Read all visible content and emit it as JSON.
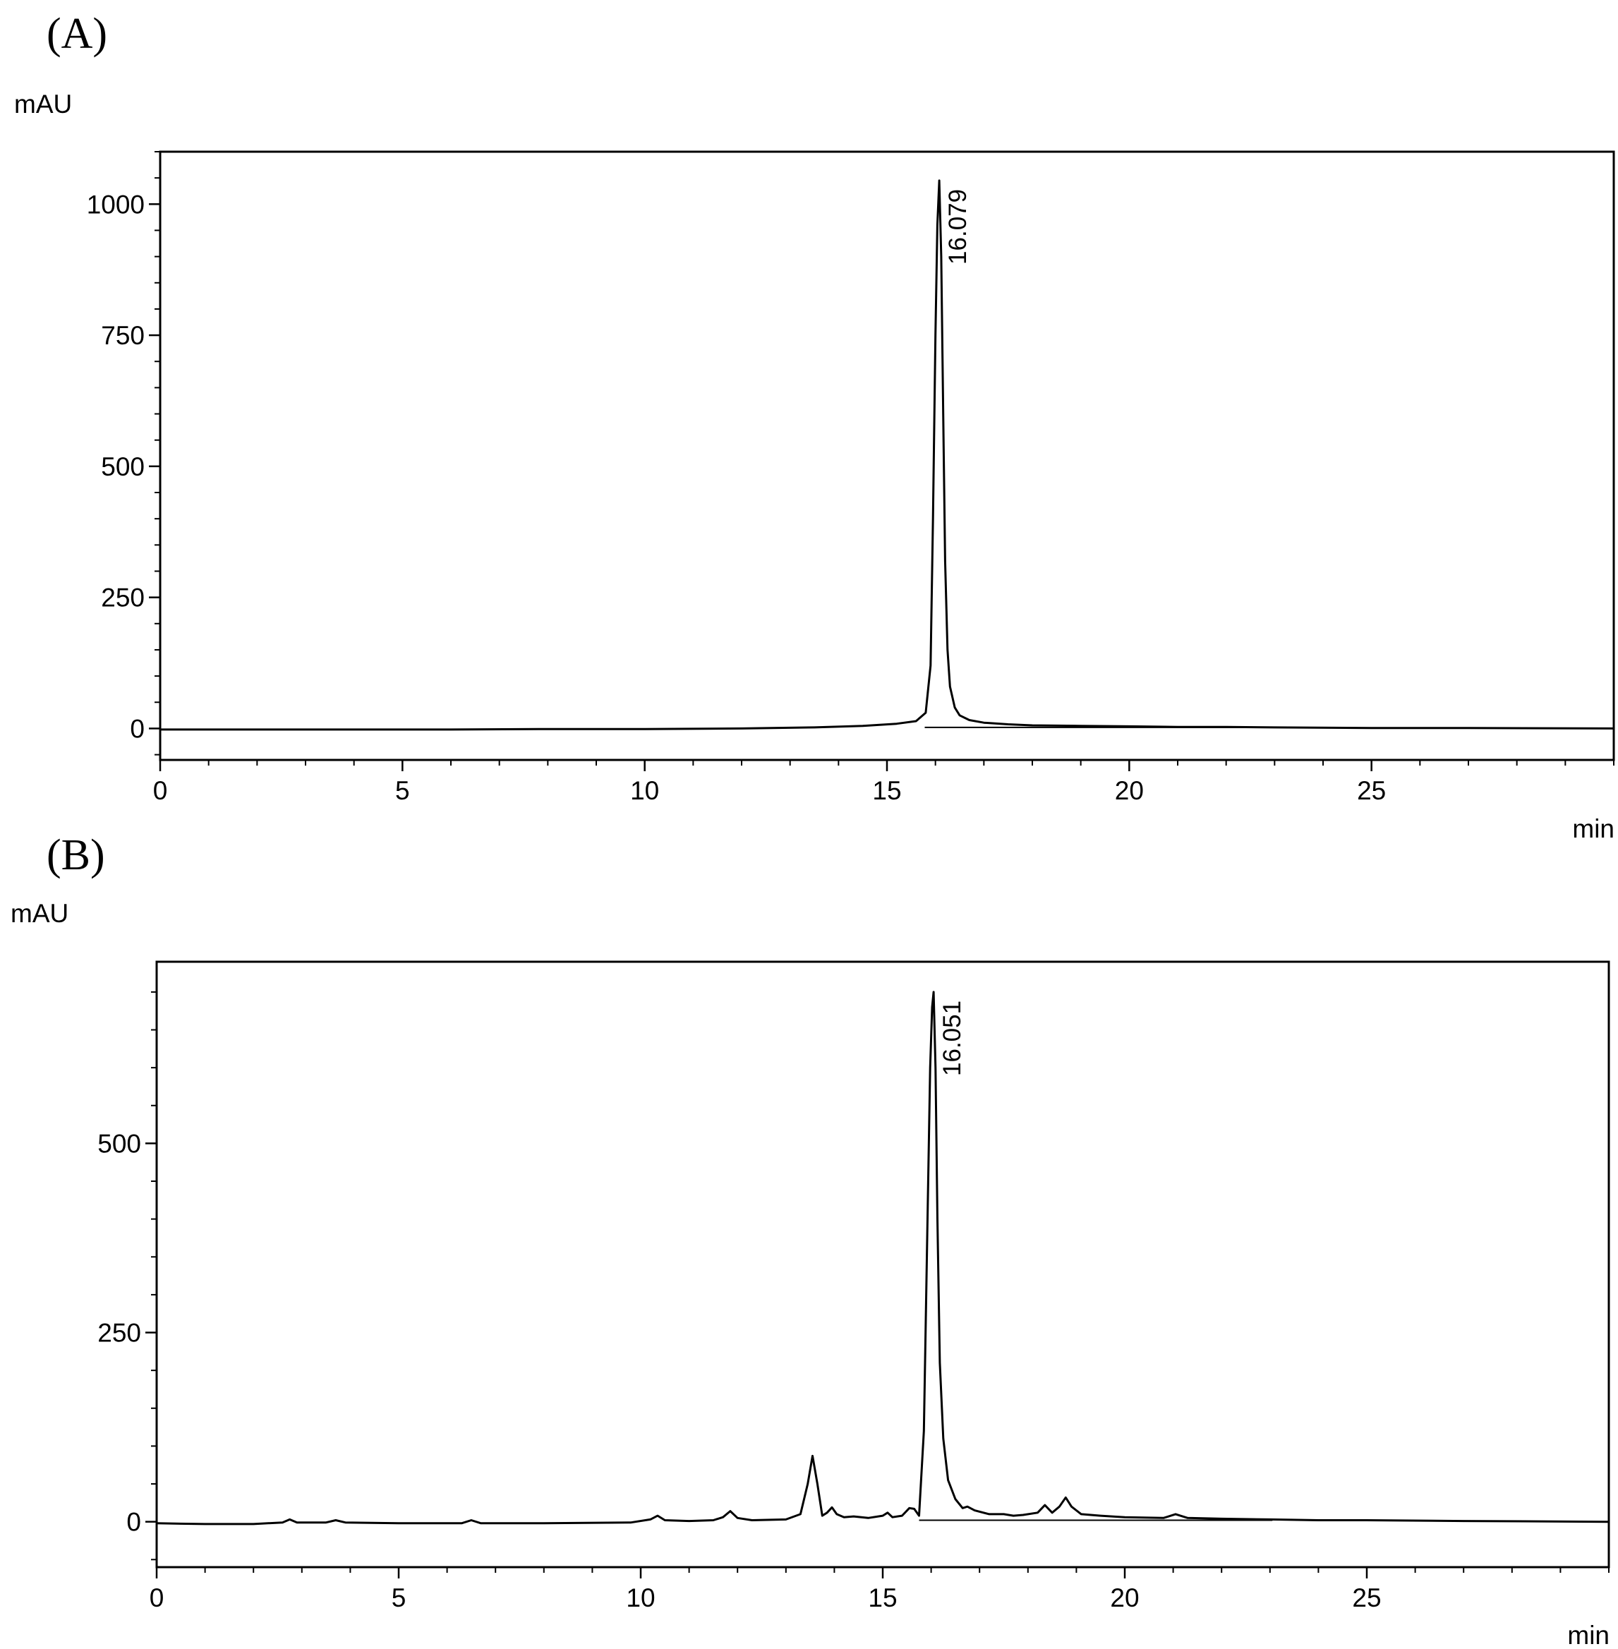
{
  "chart_data": [
    {
      "type": "line",
      "panel_label": "(A)",
      "ylabel": "mAU",
      "xlabel": "min",
      "xlim": [
        0,
        30
      ],
      "ylim": [
        -60,
        1100
      ],
      "x_ticks": [
        0,
        5,
        10,
        15,
        20,
        25
      ],
      "y_ticks": [
        0,
        250,
        500,
        750,
        1000
      ],
      "peak_labels": [
        {
          "x": 16.079,
          "y": 1045,
          "text": "16.079"
        }
      ],
      "series": [
        {
          "x": [
            0,
            2,
            4,
            6,
            8,
            10,
            12,
            13.5,
            14.5,
            15.2,
            15.6,
            15.8,
            15.9,
            15.95,
            16.0,
            16.04,
            16.079,
            16.12,
            16.16,
            16.2,
            16.25,
            16.3,
            16.4,
            16.5,
            16.7,
            17.0,
            17.5,
            18,
            19,
            20,
            21,
            22,
            23,
            25,
            27,
            30
          ],
          "y": [
            -2,
            -2,
            -2,
            -2,
            -1,
            -1,
            0,
            2,
            5,
            9,
            14,
            30,
            120,
            400,
            750,
            960,
            1045,
            900,
            600,
            320,
            150,
            80,
            40,
            25,
            16,
            11,
            8,
            6,
            5,
            4,
            3,
            3,
            2,
            1,
            1,
            0
          ]
        }
      ]
    },
    {
      "type": "line",
      "panel_label": "(B)",
      "ylabel": "mAU",
      "xlabel": "min",
      "xlim": [
        0,
        30
      ],
      "ylim": [
        -60,
        740
      ],
      "x_ticks": [
        0,
        5,
        10,
        15,
        20,
        25
      ],
      "y_ticks": [
        0,
        250,
        500
      ],
      "peak_labels": [
        {
          "x": 16.051,
          "y": 700,
          "text": "16.051"
        }
      ],
      "series": [
        {
          "x": [
            0,
            1,
            2,
            2.6,
            2.75,
            2.9,
            3.5,
            3.7,
            3.9,
            5,
            6.3,
            6.5,
            6.7,
            8,
            9.8,
            10.2,
            10.35,
            10.5,
            11,
            11.5,
            11.7,
            11.85,
            12.0,
            12.3,
            13.0,
            13.3,
            13.45,
            13.55,
            13.65,
            13.75,
            13.85,
            13.95,
            14.05,
            14.2,
            14.4,
            14.7,
            15.0,
            15.1,
            15.2,
            15.4,
            15.55,
            15.65,
            15.75,
            15.85,
            15.92,
            15.98,
            16.02,
            16.051,
            16.09,
            16.13,
            16.18,
            16.25,
            16.35,
            16.5,
            16.65,
            16.75,
            16.9,
            17.2,
            17.5,
            17.7,
            17.9,
            18.2,
            18.35,
            18.5,
            18.65,
            18.78,
            18.9,
            19.1,
            19.5,
            20,
            20.8,
            21.05,
            21.3,
            22,
            23,
            24,
            25,
            27,
            30
          ],
          "y": [
            -2,
            -3,
            -3,
            -1,
            3,
            -1,
            -1,
            2,
            -1,
            -2,
            -2,
            2,
            -2,
            -2,
            -1,
            3,
            8,
            2,
            1,
            2,
            6,
            14,
            5,
            2,
            3,
            10,
            50,
            87,
            50,
            8,
            12,
            19,
            10,
            6,
            7,
            5,
            8,
            12,
            6,
            8,
            18,
            17,
            8,
            120,
            380,
            600,
            680,
            700,
            600,
            400,
            210,
            110,
            55,
            30,
            18,
            20,
            15,
            10,
            10,
            8,
            9,
            12,
            22,
            12,
            20,
            32,
            20,
            10,
            8,
            6,
            5,
            10,
            5,
            4,
            3,
            2,
            2,
            1,
            0
          ]
        }
      ]
    }
  ]
}
